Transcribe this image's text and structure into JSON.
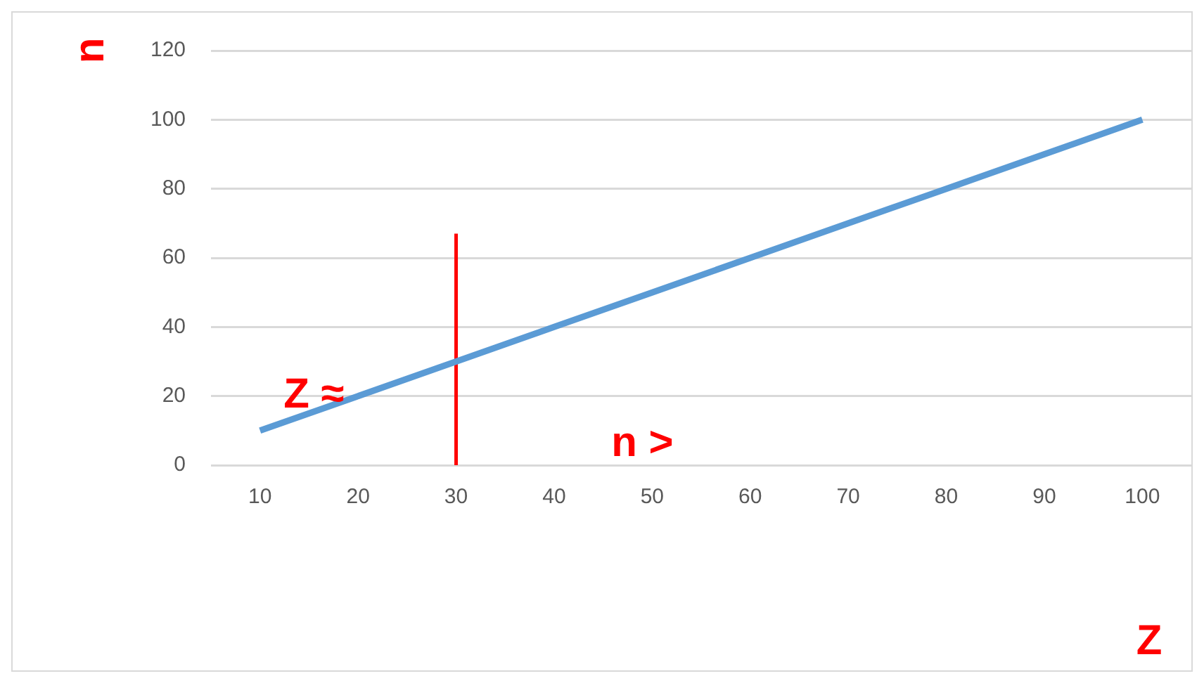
{
  "chart_data": {
    "type": "line",
    "ylabel": "n",
    "xlabel": "Z",
    "annotations": [
      "Z ≈",
      "n >"
    ],
    "x": [
      10,
      20,
      30,
      40,
      50,
      60,
      70,
      80,
      90,
      100
    ],
    "series": [
      {
        "color": "#5b9bd5",
        "values": [
          10,
          20,
          30,
          40,
          50,
          60,
          70,
          80,
          90,
          100
        ]
      },
      {
        "color": "#ff0000",
        "x": [
          30,
          30
        ],
        "values": [
          0,
          67
        ]
      }
    ],
    "xlim": [
      5,
      105
    ],
    "xticks": [
      10,
      20,
      30,
      40,
      50,
      60,
      70,
      80,
      90,
      100
    ],
    "ylim": [
      0,
      120
    ],
    "yticks": [
      0,
      20,
      40,
      60,
      80,
      100,
      120
    ],
    "grid": "y",
    "legend": false,
    "marker": "none",
    "line_style": "solid"
  }
}
